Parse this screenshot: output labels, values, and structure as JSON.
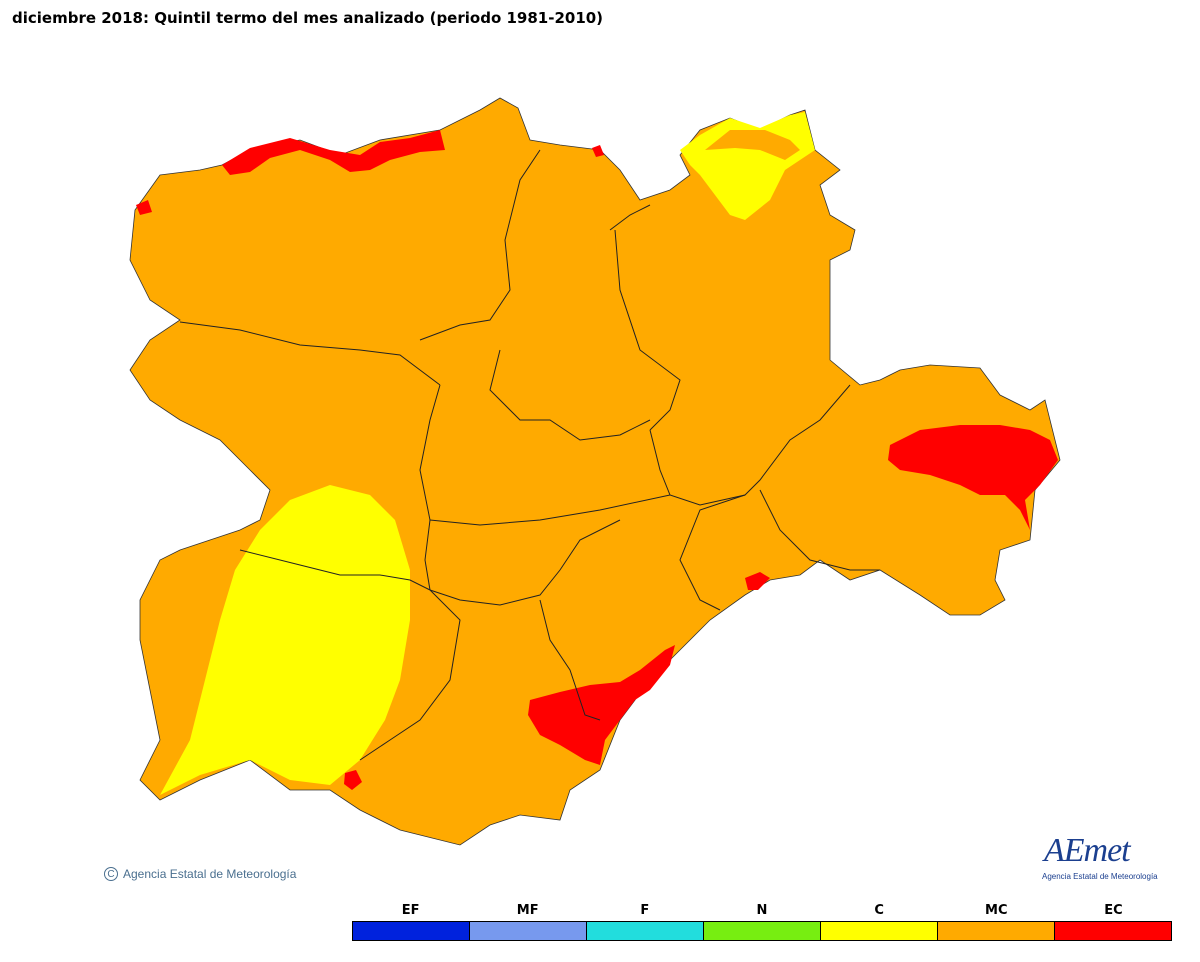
{
  "title": "diciembre 2018: Quintil termo del mes analizado (periodo 1981-2010)",
  "copyright": "Agencia Estatal de Meteorología",
  "copyright_symbol": "C",
  "logo": {
    "word": "AEmet",
    "subtitle": "Agencia Estatal de Meteorología"
  },
  "legend": [
    {
      "label": "EF",
      "color": "#0022dd"
    },
    {
      "label": "MF",
      "color": "#7799ee"
    },
    {
      "label": "F",
      "color": "#22dddd"
    },
    {
      "label": "N",
      "color": "#77ee11"
    },
    {
      "label": "C",
      "color": "#ffff00"
    },
    {
      "label": "MC",
      "color": "#ffaa00"
    },
    {
      "label": "EC",
      "color": "#ff0000"
    }
  ],
  "colors": {
    "mc": "#ffaa00",
    "c": "#ffff00",
    "ec": "#ff0000",
    "border": "#000000"
  }
}
